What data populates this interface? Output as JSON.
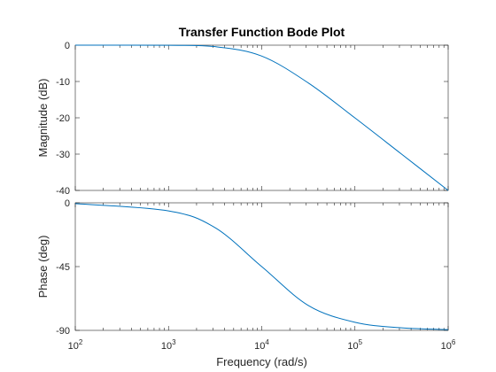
{
  "chart_data": [
    {
      "type": "line",
      "name": "magnitude",
      "title": "Transfer Function Bode Plot",
      "xlabel": "",
      "ylabel": "Magnitude (dB)",
      "xscale": "log",
      "xlim": [
        100,
        1000000
      ],
      "ylim": [
        -40,
        0
      ],
      "yticks": [
        0,
        -10,
        -20,
        -30,
        -40
      ],
      "ytick_labels": [
        "0",
        "-10",
        "-20",
        "-30",
        "-40"
      ],
      "grid": false,
      "line_color": "#0072bd",
      "x": [
        100,
        1000,
        3162,
        10000,
        31623,
        100000,
        316228,
        1000000
      ],
      "y": [
        0,
        -0.04,
        -0.41,
        -3.01,
        -10.41,
        -20.04,
        -30.0,
        -40.0
      ]
    },
    {
      "type": "line",
      "name": "phase",
      "title": "",
      "xlabel": "Frequency  (rad/s)",
      "ylabel": "Phase (deg)",
      "xscale": "log",
      "xlim": [
        100,
        1000000
      ],
      "ylim": [
        -90,
        0
      ],
      "yticks": [
        0,
        -45,
        -90
      ],
      "ytick_labels": [
        "0",
        "-45",
        "-90"
      ],
      "xticks": [
        100,
        1000,
        10000,
        100000,
        1000000
      ],
      "xtick_base": "10",
      "xtick_exponents": [
        "2",
        "3",
        "4",
        "5",
        "6"
      ],
      "grid": false,
      "line_color": "#0072bd",
      "x": [
        100,
        1000,
        3162,
        10000,
        31623,
        100000,
        316228,
        1000000
      ],
      "y": [
        -0.57,
        -5.71,
        -17.55,
        -45.0,
        -72.45,
        -84.29,
        -88.19,
        -89.43
      ]
    }
  ]
}
